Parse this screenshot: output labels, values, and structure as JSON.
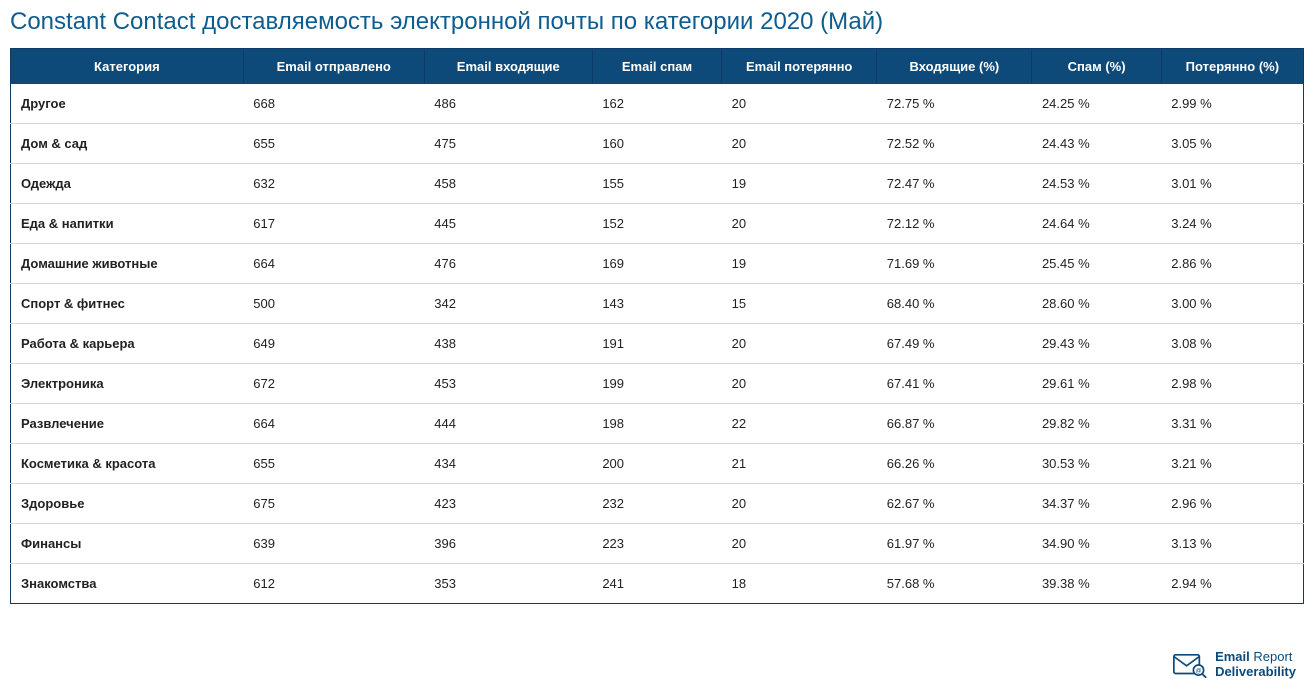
{
  "title": "Constant Contact доставляемость электронной почты по категории 2020 (Май)",
  "colors": {
    "title": "#0f5d8e",
    "header_bg": "#0d4a7a",
    "header_fg": "#ffffff",
    "border": "#0d3b66",
    "row_border": "#cfd6dc",
    "text": "#222222",
    "brand": "#0d4a7a",
    "background": "#ffffff"
  },
  "typography": {
    "title_fontsize": 24,
    "header_fontsize": 13,
    "cell_fontsize": 13,
    "brand_fontsize": 13,
    "font_family": "Arial"
  },
  "table": {
    "type": "table",
    "columns": [
      {
        "key": "category",
        "label": "Категория",
        "width_pct": 18,
        "align": "left",
        "bold_cells": true
      },
      {
        "key": "sent",
        "label": "Email отправлено",
        "width_pct": 14,
        "align": "left",
        "bold_cells": false
      },
      {
        "key": "inbox",
        "label": "Email входящие",
        "width_pct": 13,
        "align": "left",
        "bold_cells": false
      },
      {
        "key": "spam",
        "label": "Email спам",
        "width_pct": 10,
        "align": "left",
        "bold_cells": false
      },
      {
        "key": "lost",
        "label": "Email потерянно",
        "width_pct": 12,
        "align": "left",
        "bold_cells": false
      },
      {
        "key": "inbox_pct",
        "label": "Входящие (%)",
        "width_pct": 12,
        "align": "left",
        "bold_cells": false
      },
      {
        "key": "spam_pct",
        "label": "Спам (%)",
        "width_pct": 10,
        "align": "left",
        "bold_cells": false
      },
      {
        "key": "lost_pct",
        "label": "Потерянно (%)",
        "width_pct": 11,
        "align": "left",
        "bold_cells": false
      }
    ],
    "rows": [
      {
        "category": "Другое",
        "sent": "668",
        "inbox": "486",
        "spam": "162",
        "lost": "20",
        "inbox_pct": "72.75 %",
        "spam_pct": "24.25 %",
        "lost_pct": "2.99 %"
      },
      {
        "category": "Дом & сад",
        "sent": "655",
        "inbox": "475",
        "spam": "160",
        "lost": "20",
        "inbox_pct": "72.52 %",
        "spam_pct": "24.43 %",
        "lost_pct": "3.05 %"
      },
      {
        "category": "Одежда",
        "sent": "632",
        "inbox": "458",
        "spam": "155",
        "lost": "19",
        "inbox_pct": "72.47 %",
        "spam_pct": "24.53 %",
        "lost_pct": "3.01 %"
      },
      {
        "category": "Еда & напитки",
        "sent": "617",
        "inbox": "445",
        "spam": "152",
        "lost": "20",
        "inbox_pct": "72.12 %",
        "spam_pct": "24.64 %",
        "lost_pct": "3.24 %"
      },
      {
        "category": "Домашние животные",
        "sent": "664",
        "inbox": "476",
        "spam": "169",
        "lost": "19",
        "inbox_pct": "71.69 %",
        "spam_pct": "25.45 %",
        "lost_pct": "2.86 %"
      },
      {
        "category": "Спорт & фитнес",
        "sent": "500",
        "inbox": "342",
        "spam": "143",
        "lost": "15",
        "inbox_pct": "68.40 %",
        "spam_pct": "28.60 %",
        "lost_pct": "3.00 %"
      },
      {
        "category": "Работа & карьера",
        "sent": "649",
        "inbox": "438",
        "spam": "191",
        "lost": "20",
        "inbox_pct": "67.49 %",
        "spam_pct": "29.43 %",
        "lost_pct": "3.08 %"
      },
      {
        "category": "Электроника",
        "sent": "672",
        "inbox": "453",
        "spam": "199",
        "lost": "20",
        "inbox_pct": "67.41 %",
        "spam_pct": "29.61 %",
        "lost_pct": "2.98 %"
      },
      {
        "category": "Развлечение",
        "sent": "664",
        "inbox": "444",
        "spam": "198",
        "lost": "22",
        "inbox_pct": "66.87 %",
        "spam_pct": "29.82 %",
        "lost_pct": "3.31 %"
      },
      {
        "category": "Косметика & красота",
        "sent": "655",
        "inbox": "434",
        "spam": "200",
        "lost": "21",
        "inbox_pct": "66.26 %",
        "spam_pct": "30.53 %",
        "lost_pct": "3.21 %"
      },
      {
        "category": "Здоровье",
        "sent": "675",
        "inbox": "423",
        "spam": "232",
        "lost": "20",
        "inbox_pct": "62.67 %",
        "spam_pct": "34.37 %",
        "lost_pct": "2.96 %"
      },
      {
        "category": "Финансы",
        "sent": "639",
        "inbox": "396",
        "spam": "223",
        "lost": "20",
        "inbox_pct": "61.97 %",
        "spam_pct": "34.90 %",
        "lost_pct": "3.13 %"
      },
      {
        "category": "Знакомства",
        "sent": "612",
        "inbox": "353",
        "spam": "241",
        "lost": "18",
        "inbox_pct": "57.68 %",
        "spam_pct": "39.38 %",
        "lost_pct": "2.94 %"
      }
    ]
  },
  "brand": {
    "line1_a": "Email ",
    "line1_b": "Report",
    "line2": "Deliverability",
    "icon_color": "#0d4a7a"
  }
}
